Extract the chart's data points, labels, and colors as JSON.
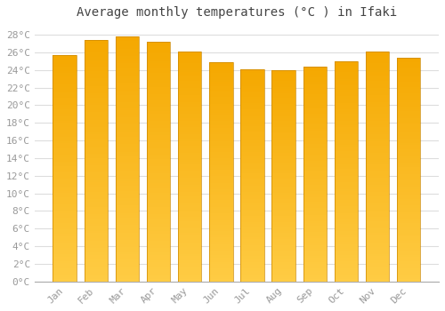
{
  "title": "Average monthly temperatures (°C ) in Ifaki",
  "months": [
    "Jan",
    "Feb",
    "Mar",
    "Apr",
    "May",
    "Jun",
    "Jul",
    "Aug",
    "Sep",
    "Oct",
    "Nov",
    "Dec"
  ],
  "temperatures": [
    25.7,
    27.4,
    27.8,
    27.2,
    26.1,
    24.9,
    24.1,
    24.0,
    24.4,
    25.0,
    26.1,
    25.4
  ],
  "bar_color_top": "#F5A800",
  "bar_color_bottom": "#FFCC44",
  "bar_edge_color": "#CC8800",
  "background_color": "#FFFFFF",
  "plot_bg_color": "#FFFFFF",
  "grid_color": "#DDDDDD",
  "tick_label_color": "#999999",
  "title_color": "#444444",
  "ylim": [
    0,
    29
  ],
  "yticks": [
    0,
    2,
    4,
    6,
    8,
    10,
    12,
    14,
    16,
    18,
    20,
    22,
    24,
    26,
    28
  ],
  "title_fontsize": 10,
  "tick_fontsize": 8,
  "bar_width": 0.75
}
